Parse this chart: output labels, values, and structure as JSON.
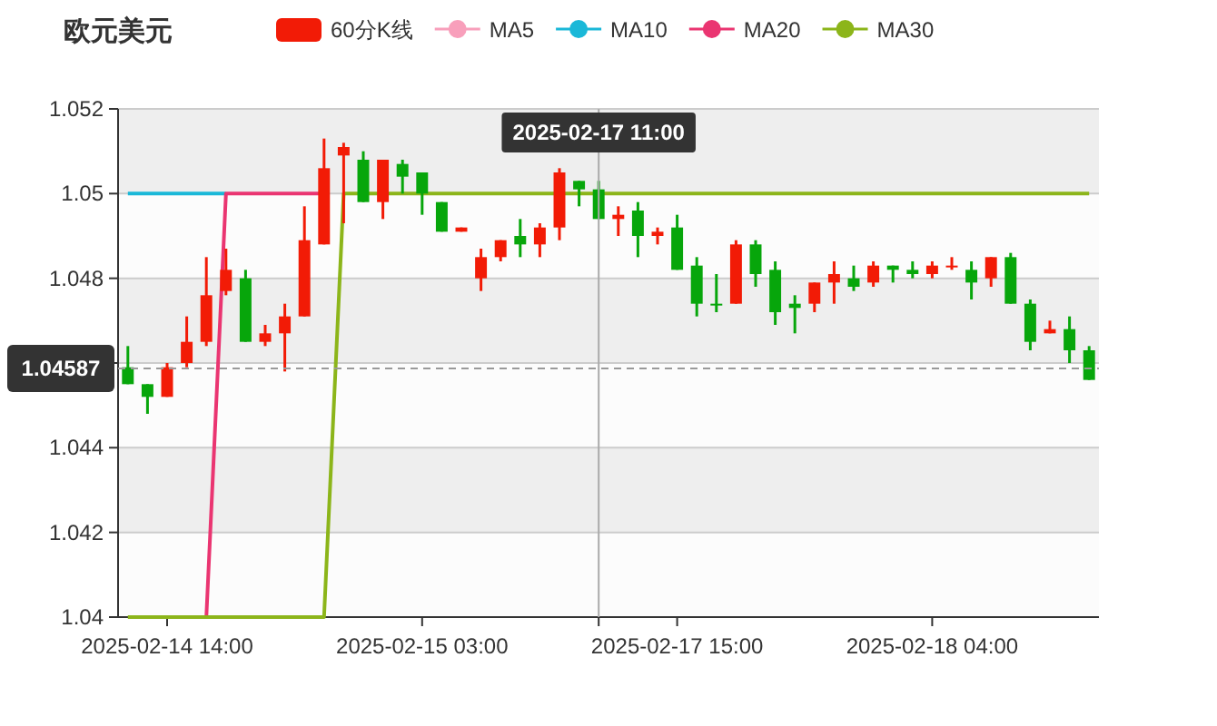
{
  "chart_data": {
    "type": "candlestick",
    "title": "欧元美元",
    "legend": "top",
    "grid": "y",
    "categories": [
      null,
      null,
      "2025-02-14 14:00",
      null,
      null,
      null,
      null,
      null,
      null,
      null,
      null,
      null,
      null,
      null,
      null,
      "2025-02-15 03:00",
      null,
      null,
      null,
      null,
      null,
      null,
      null,
      null,
      "2025-02-17 11:00",
      null,
      null,
      null,
      "2025-02-17 15:00",
      null,
      null,
      null,
      null,
      null,
      null,
      null,
      null,
      null,
      null,
      null,
      null,
      "2025-02-18 04:00",
      null,
      null,
      null,
      null,
      null,
      null,
      null,
      null
    ],
    "ylim": [
      1.04,
      1.052
    ],
    "yticks": [
      1.04,
      1.042,
      1.044,
      {
        "value": 1.046,
        "label": null
      },
      1.048,
      1.05,
      1.052
    ],
    "series": [
      {
        "name": "60分K线",
        "color": "#f21b06",
        "ohlc": [
          [
            1.0459,
            1.0464,
            1.0455,
            1.0455
          ],
          [
            1.0455,
            1.0455,
            1.0448,
            1.0452
          ],
          [
            1.0452,
            1.046,
            1.0452,
            1.0459
          ],
          [
            1.046,
            1.0471,
            1.0459,
            1.0465
          ],
          [
            1.0465,
            1.0485,
            1.0464,
            1.0476
          ],
          [
            1.0477,
            1.0487,
            1.0476,
            1.0482
          ],
          [
            1.048,
            1.0482,
            1.0465,
            1.0465
          ],
          [
            1.0465,
            1.0469,
            1.0464,
            1.0467
          ],
          [
            1.0467,
            1.0474,
            1.0458,
            1.0471
          ],
          [
            1.0471,
            1.0497,
            1.0471,
            1.0489
          ],
          [
            1.0488,
            1.0513,
            1.0488,
            1.0506
          ],
          [
            1.0509,
            1.0512,
            1.0493,
            1.0511
          ],
          [
            1.0508,
            1.051,
            1.0498,
            1.0498
          ],
          [
            1.0498,
            1.0508,
            1.0494,
            1.0508
          ],
          [
            1.0507,
            1.0508,
            1.05,
            1.0504
          ],
          [
            1.0505,
            1.0505,
            1.0495,
            1.05
          ],
          [
            1.0498,
            1.0498,
            1.0491,
            1.0491
          ],
          [
            1.0491,
            1.0492,
            1.0491,
            1.0492
          ],
          [
            1.048,
            1.0487,
            1.0477,
            1.0485
          ],
          [
            1.0485,
            1.0489,
            1.0484,
            1.0489
          ],
          [
            1.049,
            1.0494,
            1.0485,
            1.0488
          ],
          [
            1.0488,
            1.0493,
            1.0485,
            1.0492
          ],
          [
            1.0492,
            1.0506,
            1.0489,
            1.0505
          ],
          [
            1.0503,
            1.0503,
            1.0497,
            1.0501
          ],
          [
            1.0501,
            1.0503,
            1.0494,
            1.0494
          ],
          [
            1.0494,
            1.0497,
            1.049,
            1.0495
          ],
          [
            1.0496,
            1.0498,
            1.0485,
            1.049
          ],
          [
            1.049,
            1.0492,
            1.0488,
            1.0491
          ],
          [
            1.0492,
            1.0495,
            1.0482,
            1.0482
          ],
          [
            1.0483,
            1.0485,
            1.0471,
            1.0474
          ],
          [
            1.0474,
            1.0481,
            1.0472,
            1.0474
          ],
          [
            1.0474,
            1.0489,
            1.0474,
            1.0488
          ],
          [
            1.0488,
            1.0489,
            1.0478,
            1.0481
          ],
          [
            1.0482,
            1.0484,
            1.0469,
            1.0472
          ],
          [
            1.0474,
            1.0476,
            1.0467,
            1.0473
          ],
          [
            1.0474,
            1.0479,
            1.0472,
            1.0479
          ],
          [
            1.0479,
            1.0484,
            1.0474,
            1.0481
          ],
          [
            1.048,
            1.0483,
            1.0477,
            1.0478
          ],
          [
            1.0479,
            1.0484,
            1.0478,
            1.0483
          ],
          [
            1.0483,
            1.0483,
            1.0479,
            1.0482
          ],
          [
            1.0482,
            1.0484,
            1.048,
            1.0481
          ],
          [
            1.0481,
            1.0484,
            1.048,
            1.0483
          ],
          [
            1.0483,
            1.0485,
            1.0482,
            1.0483
          ],
          [
            1.0482,
            1.0484,
            1.0475,
            1.0479
          ],
          [
            1.048,
            1.0485,
            1.0478,
            1.0485
          ],
          [
            1.0485,
            1.0486,
            1.0474,
            1.0474
          ],
          [
            1.0474,
            1.0475,
            1.0463,
            1.0465
          ],
          [
            1.0467,
            1.047,
            1.0467,
            1.0468
          ],
          [
            1.0468,
            1.0471,
            1.046,
            1.0463
          ],
          [
            1.0463,
            1.0464,
            1.0456,
            1.0456
          ]
        ],
        "colors": [
          "#07a60b",
          "#07a60b",
          "#f21b06",
          "#f21b06",
          "#f21b06",
          "#f21b06",
          "#07a60b",
          "#f21b06",
          "#f21b06",
          "#f21b06",
          "#f21b06",
          "#f21b06",
          "#07a60b",
          "#f21b06",
          "#07a60b",
          "#07a60b",
          "#07a60b",
          "#f21b06",
          "#f21b06",
          "#f21b06",
          "#07a60b",
          "#f21b06",
          "#f21b06",
          "#07a60b",
          "#07a60b",
          "#f21b06",
          "#07a60b",
          "#f21b06",
          "#07a60b",
          "#07a60b",
          "#07a60b",
          "#f21b06",
          "#07a60b",
          "#07a60b",
          "#07a60b",
          "#f21b06",
          "#f21b06",
          "#07a60b",
          "#f21b06",
          "#07a60b",
          "#07a60b",
          "#f21b06",
          "#f21b06",
          "#07a60b",
          "#f21b06",
          "#07a60b",
          "#07a60b",
          "#f21b06",
          "#07a60b",
          "#07a60b"
        ]
      },
      {
        "name": "MA5",
        "type": "line",
        "color": "#f89fbb",
        "values": [
          null,
          null,
          null,
          null,
          null,
          null,
          null,
          null,
          null,
          null,
          null,
          null,
          null,
          null,
          null,
          null,
          null,
          null,
          null,
          null,
          null,
          null,
          null,
          null,
          null,
          null,
          null,
          null,
          null,
          null,
          null,
          null,
          null,
          null,
          null,
          null,
          null,
          null,
          null,
          null,
          null,
          null,
          null,
          null,
          null,
          null,
          null,
          null,
          null,
          null
        ]
      },
      {
        "name": "MA10",
        "type": "line",
        "color": "#1ab8d8",
        "values": [
          1.05,
          1.05,
          1.05,
          1.05,
          1.05,
          1.05,
          null,
          null,
          null,
          null,
          null,
          null,
          null,
          null,
          null,
          null,
          null,
          null,
          null,
          null,
          null,
          null,
          null,
          null,
          null,
          null,
          null,
          null,
          null,
          null,
          null,
          null,
          null,
          null,
          null,
          null,
          null,
          null,
          null,
          null,
          null,
          null,
          null,
          null,
          null,
          null,
          null,
          null,
          null,
          null
        ]
      },
      {
        "name": "MA20",
        "type": "line",
        "color": "#ea3571",
        "values": [
          null,
          null,
          null,
          null,
          1.04,
          1.05,
          1.05,
          1.05,
          1.05,
          1.05,
          1.05,
          null,
          null,
          null,
          null,
          null,
          null,
          null,
          null,
          null,
          null,
          null,
          null,
          null,
          null,
          null,
          null,
          null,
          null,
          null,
          null,
          null,
          null,
          null,
          null,
          null,
          null,
          null,
          null,
          null,
          null,
          null,
          null,
          null,
          null,
          null,
          null,
          null,
          null,
          null
        ]
      },
      {
        "name": "MA30",
        "type": "line",
        "color": "#8cb51a",
        "values": [
          1.04,
          1.04,
          1.04,
          1.04,
          1.04,
          1.04,
          1.04,
          1.04,
          1.04,
          1.04,
          1.04,
          1.05,
          1.05,
          1.05,
          1.05,
          1.05,
          1.05,
          1.05,
          1.05,
          1.05,
          1.05,
          1.05,
          1.05,
          1.05,
          1.05,
          1.05,
          1.05,
          1.05,
          1.05,
          1.05,
          1.05,
          1.05,
          1.05,
          1.05,
          1.05,
          1.05,
          1.05,
          1.05,
          1.05,
          1.05,
          1.05,
          1.05,
          1.05,
          1.05,
          1.05,
          1.05,
          1.05,
          1.05,
          1.05,
          1.05
        ]
      }
    ],
    "ref_lines": [
      {
        "axis": "y",
        "value": 1.04587,
        "label": "1.04587",
        "line_style": "dashed",
        "color": "#999999"
      },
      {
        "axis": "x",
        "value": "2025-02-17 11:00",
        "label": "2025-02-17 11:00",
        "color": "#aaaaaa"
      }
    ]
  }
}
